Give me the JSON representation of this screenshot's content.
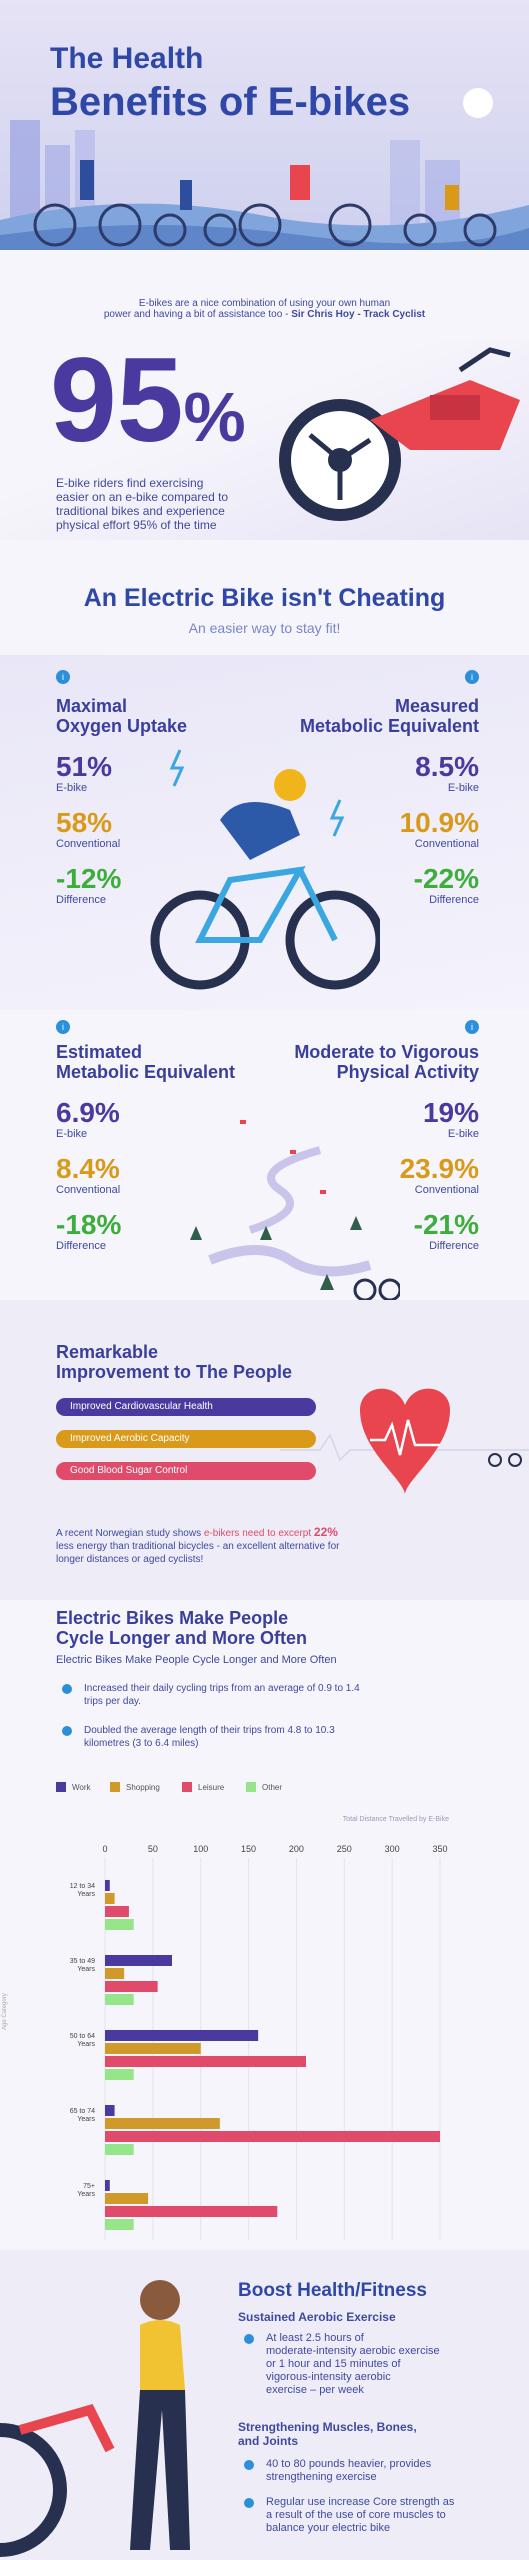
{
  "colors": {
    "header_bg": "#dcd9ef",
    "title_blue": "#2f48a8",
    "purple": "#4a3aa0",
    "orange": "#d99a1a",
    "green": "#3cae3c",
    "red": "#e8454f",
    "pink": "#e14b6b",
    "light_green": "#97e58b",
    "mustard": "#d09a2a"
  },
  "header": {
    "title_line1": "The Health",
    "title_line2": "Benefits of E-bikes"
  },
  "quote": {
    "text_line1": "E-bikes are a nice combination of using your own human",
    "text_line2": "power and having a bit of assistance too -",
    "author": "Sir Chris Hoy - Track Cyclist"
  },
  "hero_stat": {
    "value": "95",
    "unit": "%",
    "desc_line1": "E-bike riders find exercising",
    "desc_line2": "easier on an e-bike compared to",
    "desc_line3": "traditional bikes and experience",
    "desc_line4": "physical effort 95% of the time"
  },
  "cheating": {
    "title": "An Electric Bike isn't Cheating",
    "subtitle": "An easier way to stay fit!"
  },
  "stats": {
    "oxygen": {
      "title_line1": "Maximal",
      "title_line2": "Oxygen Uptake",
      "ebike": "51%",
      "ebike_label": "E-bike",
      "conventional": "58%",
      "conventional_label": "Conventional",
      "difference": "-12%",
      "difference_label": "Difference"
    },
    "met_measured": {
      "title_line1": "Measured",
      "title_line2": "Metabolic Equivalent",
      "ebike": "8.5%",
      "ebike_label": "E-bike",
      "conventional": "10.9%",
      "conventional_label": "Conventional",
      "difference": "-22%",
      "difference_label": "Difference"
    },
    "met_estimated": {
      "title_line1": "Estimated",
      "title_line2": "Metabolic Equivalent",
      "ebike": "6.9%",
      "ebike_label": "E-bike",
      "conventional": "8.4%",
      "conventional_label": "Conventional",
      "difference": "-18%",
      "difference_label": "Difference"
    },
    "activity": {
      "title_line1": "Moderate to Vigorous",
      "title_line2": "Physical Activity",
      "ebike": "19%",
      "ebike_label": "E-bike",
      "conventional": "23.9%",
      "conventional_label": "Conventional",
      "difference": "-21%",
      "difference_label": "Difference"
    }
  },
  "improvement": {
    "title_line1": "Remarkable",
    "title_line2": "Improvement to The People",
    "pills": [
      "Improved Cardiovascular Health",
      "Improved Aerobic Capacity",
      "Good Blood Sugar Control"
    ],
    "study_pre": "A recent Norwegian study shows ",
    "study_highlight": "e-bikers need to excerpt",
    "study_pct": "22%",
    "study_line2": "less energy than traditional bicycles - an excellent alternative for",
    "study_line3": "longer distances or aged cyclists!"
  },
  "longer": {
    "title_line1": "Electric Bikes Make People",
    "title_line2": "Cycle Longer and More Often",
    "subtitle": "Electric Bikes Make People Cycle Longer and More Often",
    "bullets": [
      {
        "line1": "Increased their daily cycling trips from an average of 0.9 to 1.4",
        "line2": "trips per day."
      },
      {
        "line1": "Doubled the average length of their trips from 4.8 to 10.3",
        "line2": "kilometres (3 to 6.4 miles)"
      }
    ]
  },
  "chart_data": {
    "type": "bar",
    "orientation": "horizontal",
    "title": "Total Distance Travelled by E-Bike",
    "xlabel": "",
    "ylabel": "Age Category",
    "xlim": [
      0,
      350
    ],
    "xticks": [
      "0",
      "50",
      "100",
      "150",
      "200",
      "250",
      "300",
      "350"
    ],
    "categories": [
      {
        "line1": "12 to 34",
        "line2": "Years"
      },
      {
        "line1": "35 to 49",
        "line2": "Years"
      },
      {
        "line1": "50 to 64",
        "line2": "Years"
      },
      {
        "line1": "65 to 74",
        "line2": "Years"
      },
      {
        "line1": "75+",
        "line2": "Years"
      }
    ],
    "legend_position": "top-left",
    "series": [
      {
        "name": "Work",
        "color": "#4a3aa0",
        "values": [
          5,
          70,
          160,
          10,
          5
        ]
      },
      {
        "name": "Shopping",
        "color": "#d09a2a",
        "values": [
          10,
          20,
          100,
          120,
          45
        ]
      },
      {
        "name": "Leisure",
        "color": "#e14b6b",
        "values": [
          25,
          55,
          210,
          350,
          180
        ]
      },
      {
        "name": "Other",
        "color": "#97e58b",
        "values": [
          30,
          30,
          30,
          30,
          30
        ]
      }
    ]
  },
  "boost": {
    "title": "Boost Health/Fitness",
    "sub1": "Sustained Aerobic Exercise",
    "sub1_bullet_lines": [
      "At least 2.5 hours of",
      "moderate-intensity aerobic exercise",
      "or 1 hour and 15 minutes of",
      "vigorous-intensity aerobic",
      "exercise – per week"
    ],
    "sub2_line1": "Strengthening Muscles, Bones,",
    "sub2_line2": "and Joints",
    "sub2_bullet1_lines": [
      "40 to 80 pounds heavier, provides",
      "strengthening exercise"
    ],
    "sub2_bullet2_lines": [
      "Regular use increase Core strength as",
      "a result of the use of core muscles to",
      "balance your electric bike"
    ]
  }
}
